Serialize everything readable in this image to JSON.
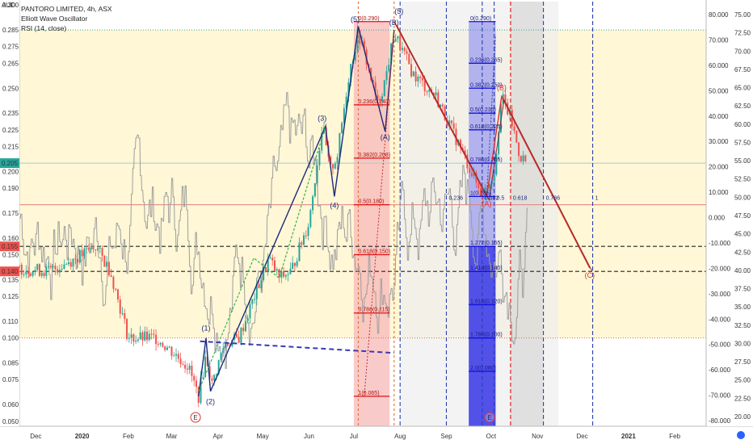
{
  "legend": {
    "symbol": "PANTORO LIMITED, 4h, ASX",
    "indicator1": "Elliott Wave Oscillator",
    "indicator2": "RSI (14, close)"
  },
  "colors": {
    "upCandle": "#26a69a",
    "downCandle": "#ef5350",
    "impulse": "#1b2a7a",
    "correction": "#e0302a",
    "fibRed": "#e01010",
    "fibBlue": "#1010e0",
    "waveGreen": "#2fb64a",
    "waveBlue": "#1b2a7a",
    "waveRed": "#e0302a",
    "yellowZone": "#fff7d6",
    "redZone": "#f7b8b8",
    "blueZone": "#6e6ef2",
    "grayZone": "#eeeeee",
    "oscillator": "#9e9e9e"
  },
  "chart_data": {
    "type": "candlestick",
    "xlabel": "",
    "ylabel": "",
    "x_ticks": [
      "Dec",
      "2020",
      "Feb",
      "Mar",
      "Apr",
      "May",
      "Jun",
      "Jul",
      "Aug",
      "Sep",
      "Oct",
      "Nov",
      "Dec",
      "2021",
      "Feb"
    ],
    "left_axis": {
      "unit_label": "AUD",
      "ticks": [
        "0.300",
        "0.285",
        "0.275",
        "0.265",
        "0.250",
        "0.235",
        "0.225",
        "0.215",
        "0.200",
        "0.190",
        "0.175",
        "0.160",
        "0.150",
        "0.135",
        "0.125",
        "0.110",
        "0.100",
        "0.085",
        "0.075",
        "0.060",
        "0.050"
      ],
      "ylim": [
        0.047,
        0.302
      ]
    },
    "left_axis_badges": [
      {
        "label": "0.205",
        "value": 0.205,
        "color": "#26a69a"
      },
      {
        "label": "0.155",
        "value": 0.155,
        "color": "#ef5350"
      },
      {
        "label": "0.140",
        "value": 0.14,
        "color": "#ef5350"
      }
    ],
    "oscillator_axis": {
      "ticks": [
        "80.000",
        "70.000",
        "60.000",
        "50.000",
        "40.000",
        "30.000",
        "20.000",
        "10.000",
        "0.000",
        "-10.000",
        "-20.000",
        "-30.000",
        "-40.000",
        "-50.000",
        "-60.000",
        "-70.000",
        "-80.000"
      ],
      "range": [
        -80,
        80
      ]
    },
    "rsi_axis": {
      "ticks": [
        "75.00",
        "72.50",
        "70.00",
        "67.50",
        "65.00",
        "62.50",
        "60.00",
        "57.50",
        "55.00",
        "52.50",
        "50.00",
        "47.50",
        "45.00",
        "42.50",
        "40.00",
        "37.50",
        "35.00",
        "32.50",
        "30.00",
        "27.50",
        "25.00",
        "22.50",
        "20.00"
      ],
      "range": [
        20,
        75
      ]
    },
    "price_path": [
      {
        "date": "2019-11-20",
        "close": 0.142
      },
      {
        "date": "2019-12-10",
        "close": 0.14
      },
      {
        "date": "2020-01-01",
        "close": 0.15
      },
      {
        "date": "2020-01-10",
        "close": 0.155
      },
      {
        "date": "2020-01-20",
        "close": 0.14
      },
      {
        "date": "2020-02-01",
        "close": 0.1
      },
      {
        "date": "2020-02-20",
        "close": 0.1
      },
      {
        "date": "2020-03-01",
        "close": 0.092
      },
      {
        "date": "2020-03-12",
        "close": 0.083
      },
      {
        "date": "2020-03-19",
        "close": 0.065
      },
      {
        "date": "2020-03-24",
        "close": 0.09
      },
      {
        "date": "2020-03-28",
        "close": 0.072
      },
      {
        "date": "2020-04-05",
        "close": 0.096
      },
      {
        "date": "2020-04-15",
        "close": 0.1
      },
      {
        "date": "2020-05-05",
        "close": 0.148
      },
      {
        "date": "2020-05-12",
        "close": 0.136
      },
      {
        "date": "2020-05-20",
        "close": 0.14
      },
      {
        "date": "2020-06-01",
        "close": 0.17
      },
      {
        "date": "2020-06-10",
        "close": 0.228
      },
      {
        "date": "2020-06-15",
        "close": 0.2
      },
      {
        "date": "2020-06-20",
        "close": 0.21
      },
      {
        "date": "2020-06-28",
        "close": 0.26
      },
      {
        "date": "2020-07-04",
        "close": 0.283
      },
      {
        "date": "2020-07-10",
        "close": 0.265
      },
      {
        "date": "2020-07-17",
        "close": 0.24
      },
      {
        "date": "2020-07-22",
        "close": 0.255
      },
      {
        "date": "2020-07-28",
        "close": 0.283
      },
      {
        "date": "2020-08-10",
        "close": 0.258
      },
      {
        "date": "2020-08-25",
        "close": 0.245
      },
      {
        "date": "2020-09-10",
        "close": 0.215
      },
      {
        "date": "2020-09-25",
        "close": 0.185
      },
      {
        "date": "2020-10-03",
        "close": 0.2
      },
      {
        "date": "2020-10-08",
        "close": 0.245
      },
      {
        "date": "2020-10-14",
        "close": 0.232
      },
      {
        "date": "2020-10-20",
        "close": 0.21
      },
      {
        "date": "2020-10-25",
        "close": 0.205
      }
    ],
    "impulse_waves": [
      {
        "label": "(1)",
        "date": "2020-03-24",
        "price": 0.1
      },
      {
        "label": "(2)",
        "date": "2020-03-27",
        "price": 0.068
      },
      {
        "label": "(3)",
        "date": "2020-06-12",
        "price": 0.227
      },
      {
        "label": "(4)",
        "date": "2020-06-18",
        "price": 0.185
      },
      {
        "label": "(5)",
        "date": "2020-07-04",
        "price": 0.287
      },
      {
        "label": "(A)",
        "date": "2020-07-22",
        "price": 0.224
      },
      {
        "label": "(B)",
        "date": "2020-07-28",
        "price": 0.285
      }
    ],
    "corrective_waves": [
      {
        "label": "(5)",
        "date": "2020-07-28",
        "price": 0.29
      },
      {
        "label": "(A)",
        "date": "2020-09-28",
        "price": 0.185
      },
      {
        "label": "(B)",
        "date": "2020-10-08",
        "price": 0.245
      },
      {
        "label": "(C)",
        "date": "2020-12-06",
        "price": 0.142
      }
    ],
    "fib_retracement_red": [
      {
        "label": "0(0.290)",
        "value": 0.29
      },
      {
        "label": "0.236(0.240)",
        "value": 0.24
      },
      {
        "label": "0.382(0.208)",
        "value": 0.208
      },
      {
        "label": "0.5(0.180)",
        "value": 0.18
      },
      {
        "label": "0.618(0.150)",
        "value": 0.15
      },
      {
        "label": "0.786(0.115)",
        "value": 0.115
      },
      {
        "label": "1(0.065)",
        "value": 0.065
      }
    ],
    "fib_retracement_blue": [
      {
        "label": "0(0.290)",
        "value": 0.29
      },
      {
        "label": "0.236(0.265)",
        "value": 0.265
      },
      {
        "label": "0.382(0.250)",
        "value": 0.25
      },
      {
        "label": "0.5(0.235)",
        "value": 0.235
      },
      {
        "label": "0.618(0.225)",
        "value": 0.225
      },
      {
        "label": "0.786(0.205)",
        "value": 0.205
      },
      {
        "label": "1(0.185)",
        "value": 0.185
      },
      {
        "label": "1.272(0.155)",
        "value": 0.155
      },
      {
        "label": "1.414(0.140)",
        "value": 0.14
      },
      {
        "label": "1.618(0.120)",
        "value": 0.12
      },
      {
        "label": "1.786(0.100)",
        "value": 0.1
      },
      {
        "label": "2.0(0.080)",
        "value": 0.08
      }
    ],
    "fib_time_labels": [
      {
        "label": "0.236",
        "date": "2020-09-01"
      },
      {
        "label": "0.382",
        "date": "2020-09-25"
      },
      {
        "label": "0.5",
        "date": "2020-10-03"
      },
      {
        "label": "0.618",
        "date": "2020-10-14"
      },
      {
        "label": "0.786",
        "date": "2020-11-05"
      },
      {
        "label": "1",
        "date": "2020-12-08"
      }
    ],
    "horizontal_dashed_levels": [
      0.155,
      0.14
    ],
    "event_markers": [
      {
        "label": "E",
        "date": "2020-03-17"
      },
      {
        "label": "E",
        "date": "2020-09-30"
      }
    ]
  }
}
